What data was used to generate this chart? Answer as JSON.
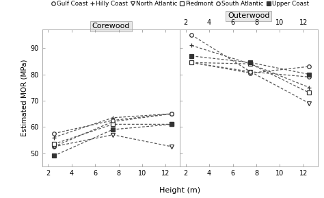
{
  "xlabel": "Height (m)",
  "ylabel": "Estimated MOR (MPa)",
  "ylim": [
    45,
    97
  ],
  "yticks": [
    50,
    60,
    70,
    80,
    90
  ],
  "xticks": [
    2,
    4,
    6,
    8,
    10,
    12
  ],
  "series": [
    {
      "name": "Gulf Coast",
      "marker": "o",
      "filled": false,
      "corewood": {
        "x": [
          2.5,
          7.5,
          12.5
        ],
        "y": [
          52.5,
          62.0,
          65.0
        ]
      },
      "outerwood": {
        "x": [
          2.5,
          7.5,
          12.5
        ],
        "y": [
          84.5,
          80.5,
          83.0
        ]
      }
    },
    {
      "name": "Hilly Coast",
      "marker": "+",
      "filled": false,
      "corewood": {
        "x": [
          2.5,
          7.5,
          12.5
        ],
        "y": [
          56.0,
          63.5,
          65.0
        ]
      },
      "outerwood": {
        "x": [
          2.5,
          7.5,
          12.5
        ],
        "y": [
          91.0,
          84.0,
          75.0
        ]
      }
    },
    {
      "name": "North Atlantic",
      "marker": "v",
      "filled": false,
      "corewood": {
        "x": [
          2.5,
          7.5,
          12.5
        ],
        "y": [
          52.5,
          57.0,
          52.5
        ]
      },
      "outerwood": {
        "x": [
          2.5,
          7.5,
          12.5
        ],
        "y": [
          84.5,
          81.0,
          69.0
        ]
      }
    },
    {
      "name": "Piedmont",
      "marker": "s",
      "filled": false,
      "corewood": {
        "x": [
          2.5,
          7.5,
          12.5
        ],
        "y": [
          53.5,
          61.0,
          61.0
        ]
      },
      "outerwood": {
        "x": [
          2.5,
          7.5,
          12.5
        ],
        "y": [
          84.5,
          84.0,
          73.0
        ]
      }
    },
    {
      "name": "South Atlantic",
      "marker": "o",
      "filled": false,
      "corewood": {
        "x": [
          2.5,
          7.5,
          12.5
        ],
        "y": [
          57.5,
          62.5,
          65.0
        ]
      },
      "outerwood": {
        "x": [
          2.5,
          7.5,
          12.5
        ],
        "y": [
          95.0,
          81.0,
          79.0
        ]
      }
    },
    {
      "name": "Upper Coast",
      "marker": "s",
      "filled": true,
      "corewood": {
        "x": [
          2.5,
          7.5,
          12.5
        ],
        "y": [
          49.0,
          59.0,
          61.0
        ]
      },
      "outerwood": {
        "x": [
          2.5,
          7.5,
          12.5
        ],
        "y": [
          87.0,
          84.5,
          80.0
        ]
      }
    }
  ],
  "legend_configs": [
    {
      "label": "Gulf Coast",
      "marker": "o",
      "filled": false
    },
    {
      "label": "Hilly Coast",
      "marker": "+",
      "filled": false
    },
    {
      "label": "North Atlantic",
      "marker": "v",
      "filled": false
    },
    {
      "label": "Piedmont",
      "marker": "s",
      "filled": false
    },
    {
      "label": "South Atlantic",
      "marker": "o",
      "filled": false
    },
    {
      "label": "Upper Coast",
      "marker": "s",
      "filled": true
    }
  ],
  "fig_bg": "#ffffff",
  "panel_bg": "#ffffff",
  "strip_bg": "#e8e8e8",
  "line_color": "#555555",
  "marker_color": "#333333"
}
